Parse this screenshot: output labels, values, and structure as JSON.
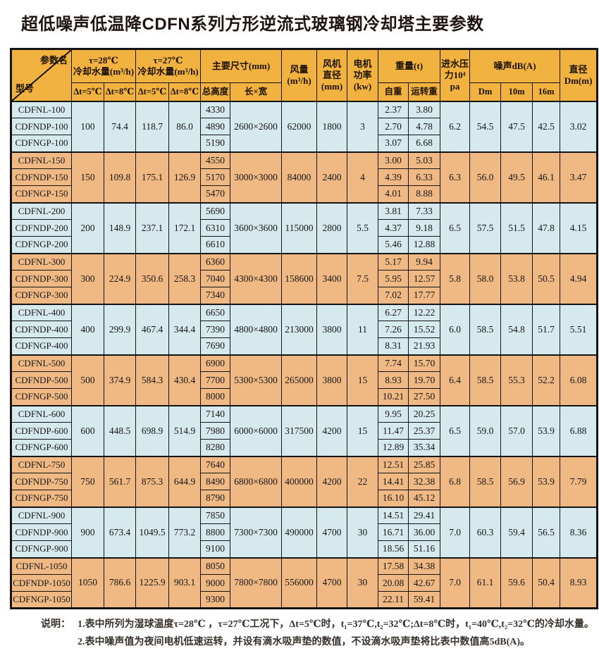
{
  "title": "超低噪声低温降CDFN系列方形逆流式玻璃钢冷却塔主要参数",
  "colors": {
    "header_bg": "#f1b240",
    "row_blue": "#d6eaee",
    "row_orange": "#f0b984",
    "border": "#141414"
  },
  "table": {
    "header": {
      "corner_top": "参数名",
      "corner_bottom": "型号",
      "t28_line1": "τ=28℃",
      "t28_line2": "冷却水量(m³/h)",
      "t27_line1": "τ=27℃",
      "t27_line2": "冷却水量(m³/h)",
      "dt5_a": "Δt=5℃",
      "dt8_a": "Δt=8℃",
      "dt5_b": "Δt=5℃",
      "dt8_b": "Δt=8℃",
      "dims": "主要尺寸(mm)",
      "total_height": "总高度",
      "length_width": "长×宽",
      "air_line1": "风量",
      "air_line2": "(m³/h)",
      "fan_line1": "风机",
      "fan_line2": "直径",
      "fan_line3": "(mm)",
      "motor_line1": "电机",
      "motor_line2": "功率",
      "motor_line3": "(kw)",
      "weight": "重量(t)",
      "self_weight": "自重",
      "run_weight": "运转重",
      "pressure_line1": "进水压",
      "pressure_line2": "力10⁴",
      "pressure_line3": "pa",
      "noise": "噪声dB(A)",
      "noise_dm": "Dm",
      "noise_10m": "10m",
      "noise_16m": "16m",
      "dia_line1": "直径",
      "dia_line2": "Dm(m)"
    },
    "groups": [
      {
        "tone": "blue",
        "models": [
          "CDFNL-100",
          "CDFNDP-100",
          "CDFNGP-100"
        ],
        "water28_dt5": "100",
        "water28_dt8": "74.4",
        "water27_dt5": "118.7",
        "water27_dt8": "86.0",
        "heights": [
          "4330",
          "4890",
          "5190"
        ],
        "lw": "2600×2600",
        "air": "62000",
        "fan": "1800",
        "power": "3",
        "self_w": [
          "2.37",
          "2.70",
          "3.07"
        ],
        "run_w": [
          "3.80",
          "4.78",
          "6.68"
        ],
        "pressure": "6.2",
        "noise_dm": "54.5",
        "noise_10m": "47.5",
        "noise_16m": "42.5",
        "dia": "3.02"
      },
      {
        "tone": "orange",
        "models": [
          "CDFNL-150",
          "CDFNDP-150",
          "CDFNGP-150"
        ],
        "water28_dt5": "150",
        "water28_dt8": "109.8",
        "water27_dt5": "175.1",
        "water27_dt8": "126.9",
        "heights": [
          "4550",
          "5170",
          "5470"
        ],
        "lw": "3000×3000",
        "air": "84000",
        "fan": "2400",
        "power": "4",
        "self_w": [
          "3.00",
          "4.39",
          "4.01"
        ],
        "run_w": [
          "5.03",
          "6.33",
          "8.88"
        ],
        "pressure": "6.3",
        "noise_dm": "56.0",
        "noise_10m": "49.5",
        "noise_16m": "46.1",
        "dia": "3.47"
      },
      {
        "tone": "blue",
        "models": [
          "CDFNL-200",
          "CDFNDP-200",
          "CDFNGP-200"
        ],
        "water28_dt5": "200",
        "water28_dt8": "148.9",
        "water27_dt5": "237.1",
        "water27_dt8": "172.1",
        "heights": [
          "5690",
          "6310",
          "6610"
        ],
        "lw": "3600×3600",
        "air": "115000",
        "fan": "2800",
        "power": "5.5",
        "self_w": [
          "3.81",
          "4.37",
          "5.46"
        ],
        "run_w": [
          "7.33",
          "9.18",
          "12.88"
        ],
        "pressure": "6.5",
        "noise_dm": "57.5",
        "noise_10m": "51.5",
        "noise_16m": "47.8",
        "dia": "4.15"
      },
      {
        "tone": "orange",
        "models": [
          "CDFNL-300",
          "CDFNDP-300",
          "CDFNGP-300"
        ],
        "water28_dt5": "300",
        "water28_dt8": "224.9",
        "water27_dt5": "350.6",
        "water27_dt8": "258.3",
        "heights": [
          "6360",
          "7040",
          "7340"
        ],
        "lw": "4300×4300",
        "air": "158600",
        "fan": "3400",
        "power": "7.5",
        "self_w": [
          "5.17",
          "5.95",
          "7.02"
        ],
        "run_w": [
          "9.94",
          "12.57",
          "17.77"
        ],
        "pressure": "5.8",
        "noise_dm": "58.0",
        "noise_10m": "53.8",
        "noise_16m": "50.5",
        "dia": "4.94"
      },
      {
        "tone": "blue",
        "models": [
          "CDFNL-400",
          "CDFNDP-400",
          "CDFNGP-400"
        ],
        "water28_dt5": "400",
        "water28_dt8": "299.9",
        "water27_dt5": "467.4",
        "water27_dt8": "344.4",
        "heights": [
          "6650",
          "7390",
          "7690"
        ],
        "lw": "4800×4800",
        "air": "213000",
        "fan": "3800",
        "power": "11",
        "self_w": [
          "6.27",
          "7.26",
          "8.31"
        ],
        "run_w": [
          "12.22",
          "15.52",
          "21.93"
        ],
        "pressure": "6.0",
        "noise_dm": "58.5",
        "noise_10m": "54.8",
        "noise_16m": "51.7",
        "dia": "5.51"
      },
      {
        "tone": "orange",
        "models": [
          "CDFNL-500",
          "CDFNDP-500",
          "CDFNGP-500"
        ],
        "water28_dt5": "500",
        "water28_dt8": "374.9",
        "water27_dt5": "584.3",
        "water27_dt8": "430.4",
        "heights": [
          "6900",
          "7700",
          "8000"
        ],
        "lw": "5300×5300",
        "air": "265000",
        "fan": "3800",
        "power": "15",
        "self_w": [
          "7.74",
          "8.93",
          "10.21"
        ],
        "run_w": [
          "15.70",
          "19.70",
          "27.50"
        ],
        "pressure": "6.4",
        "noise_dm": "58.5",
        "noise_10m": "55.3",
        "noise_16m": "52.2",
        "dia": "6.08"
      },
      {
        "tone": "blue",
        "models": [
          "CDFNL-600",
          "CDFNDP-600",
          "CDFNGP-600"
        ],
        "water28_dt5": "600",
        "water28_dt8": "448.5",
        "water27_dt5": "698.9",
        "water27_dt8": "514.9",
        "heights": [
          "7140",
          "7980",
          "8280"
        ],
        "lw": "6000×6000",
        "air": "317500",
        "fan": "4200",
        "power": "15",
        "self_w": [
          "9.95",
          "11.47",
          "12.89"
        ],
        "run_w": [
          "20.25",
          "25.37",
          "35.34"
        ],
        "pressure": "6.5",
        "noise_dm": "59.0",
        "noise_10m": "57.0",
        "noise_16m": "53.9",
        "dia": "6.88"
      },
      {
        "tone": "orange",
        "models": [
          "CDFNL-750",
          "CDFNDP-750",
          "CDFNGP-750"
        ],
        "water28_dt5": "750",
        "water28_dt8": "561.7",
        "water27_dt5": "875.3",
        "water27_dt8": "644.9",
        "heights": [
          "7640",
          "8490",
          "8790"
        ],
        "lw": "6800×6800",
        "air": "400000",
        "fan": "4200",
        "power": "22",
        "self_w": [
          "12.51",
          "14.41",
          "16.10"
        ],
        "run_w": [
          "25.85",
          "32.38",
          "45.12"
        ],
        "pressure": "6.8",
        "noise_dm": "58.5",
        "noise_10m": "56.9",
        "noise_16m": "53.9",
        "dia": "7.79"
      },
      {
        "tone": "blue",
        "models": [
          "CDFNL-900",
          "CDFNDP-900",
          "CDFNGP-900"
        ],
        "water28_dt5": "900",
        "water28_dt8": "673.4",
        "water27_dt5": "1049.5",
        "water27_dt8": "773.2",
        "heights": [
          "7850",
          "8800",
          "9100"
        ],
        "lw": "7300×7300",
        "air": "490000",
        "fan": "4700",
        "power": "30",
        "self_w": [
          "14.51",
          "16.71",
          "18.56"
        ],
        "run_w": [
          "29.41",
          "36.00",
          "51.16"
        ],
        "pressure": "7.0",
        "noise_dm": "60.3",
        "noise_10m": "59.4",
        "noise_16m": "56.5",
        "dia": "8.36"
      },
      {
        "tone": "orange",
        "models": [
          "CDFNL-1050",
          "CDFNDP-1050",
          "CDFNGP-1050"
        ],
        "water28_dt5": "1050",
        "water28_dt8": "786.6",
        "water27_dt5": "1225.9",
        "water27_dt8": "903.1",
        "heights": [
          "8050",
          "9000",
          "9300"
        ],
        "lw": "7800×7800",
        "air": "556000",
        "fan": "4700",
        "power": "30",
        "self_w": [
          "17.58",
          "20.08",
          "22.11"
        ],
        "run_w": [
          "34.38",
          "42.67",
          "59.41"
        ],
        "pressure": "7.0",
        "noise_dm": "61.1",
        "noise_10m": "59.6",
        "noise_16m": "50.4",
        "dia": "8.93"
      }
    ]
  },
  "notes": {
    "label": "说明：",
    "line1": "1.表中所列为湿球温度τ=28℃ ，τ=27℃工况下，Δt=5℃时，t₁=37℃,t₂=32℃;Δt=8℃时，t₁=40℃,t₂=32℃的冷却水量。",
    "line2": "2.表中噪声值为夜间电机低速运转，并设有滴水吸声垫的数值，不设滴水吸声垫将比表中数值高5dB(A)。"
  }
}
